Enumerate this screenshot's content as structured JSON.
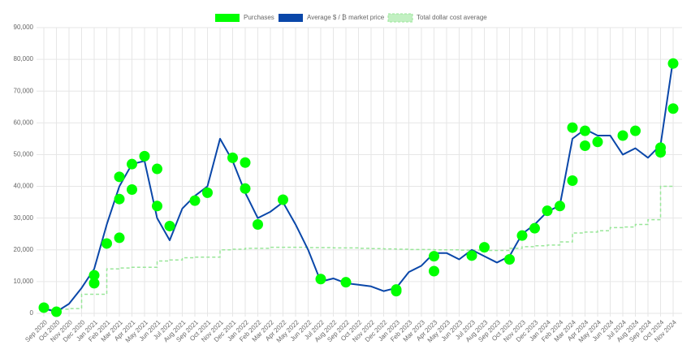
{
  "chart_data": {
    "type": "line",
    "categories": [
      "Sep 2020",
      "Oct 2020",
      "Nov 2020",
      "Dec 2020",
      "Jan 2021",
      "Feb 2021",
      "Mar 2021",
      "Apr 2021",
      "May 2021",
      "Jun 2021",
      "Jul 2021",
      "Aug 2021",
      "Sep 2021",
      "Oct 2021",
      "Nov 2021",
      "Dec 2021",
      "Jan 2022",
      "Feb 2022",
      "Mar 2022",
      "Apr 2022",
      "May 2022",
      "Jun 2022",
      "Jul 2022",
      "Aug 2022",
      "Sep 2022",
      "Oct 2022",
      "Nov 2022",
      "Dec 2022",
      "Jan 2023",
      "Feb 2023",
      "Mar 2023",
      "Apr 2023",
      "May 2023",
      "Jun 2023",
      "Jul 2023",
      "Aug 2023",
      "Sep 2023",
      "Oct 2023",
      "Nov 2023",
      "Dec 2023",
      "Jan 2024",
      "Feb 2024",
      "Mar 2024",
      "Apr 2024",
      "May 2024",
      "Jun 2024",
      "Jul 2024",
      "Aug 2024",
      "Sep 2024",
      "Oct 2024",
      "Nov 2024"
    ],
    "series": [
      {
        "name": "Purchases",
        "type": "scatter",
        "color": "#00ff00",
        "x": [
          "Sep 2020",
          "Oct 2020",
          "Jan 2021",
          "Jan 2021",
          "Feb 2021",
          "Mar 2021",
          "Mar 2021",
          "Mar 2021",
          "Apr 2021",
          "Apr 2021",
          "May 2021",
          "Jun 2021",
          "Jun 2021",
          "Jul 2021",
          "Sep 2021",
          "Oct 2021",
          "Dec 2021",
          "Jan 2022",
          "Jan 2022",
          "Feb 2022",
          "Apr 2022",
          "Jul 2022",
          "Sep 2022",
          "Jan 2023",
          "Jan 2023",
          "Apr 2023",
          "Apr 2023",
          "Jul 2023",
          "Aug 2023",
          "Oct 2023",
          "Nov 2023",
          "Dec 2023",
          "Jan 2024",
          "Feb 2024",
          "Mar 2024",
          "Mar 2024",
          "Apr 2024",
          "Apr 2024",
          "May 2024",
          "Jul 2024",
          "Aug 2024",
          "Oct 2024",
          "Oct 2024",
          "Nov 2024",
          "Nov 2024"
        ],
        "values": [
          1800,
          500,
          9500,
          12000,
          22000,
          23800,
          43000,
          36000,
          39000,
          47000,
          49500,
          45500,
          33800,
          27500,
          35500,
          38000,
          49000,
          47500,
          39300,
          28000,
          35800,
          10800,
          9800,
          7500,
          7000,
          13300,
          18000,
          18200,
          20800,
          17000,
          24500,
          26800,
          32300,
          33800,
          41800,
          58500,
          52800,
          57500,
          54000,
          56000,
          57500,
          50700,
          52200,
          64500,
          78700
        ]
      },
      {
        "name": "Average $ / ₿ market price",
        "type": "line",
        "color": "#0a47a9",
        "values": [
          1500,
          500,
          3000,
          8000,
          14000,
          28000,
          40000,
          47000,
          48000,
          30000,
          23000,
          33000,
          37000,
          40000,
          55000,
          48000,
          38000,
          30000,
          32000,
          35000,
          28000,
          20000,
          10000,
          11000,
          9500,
          9000,
          8500,
          7000,
          8000,
          13000,
          15000,
          19000,
          19000,
          17000,
          20000,
          18000,
          16000,
          18000,
          25000,
          28000,
          32000,
          34000,
          55000,
          58000,
          56000,
          56000,
          50000,
          52000,
          49000,
          53000,
          80000
        ]
      },
      {
        "name": "Total dollar cost average",
        "type": "step",
        "color": "#99e699",
        "values": [
          1500,
          1200,
          1300,
          1500,
          6000,
          6000,
          14000,
          14300,
          14500,
          14500,
          16500,
          16800,
          17500,
          17700,
          17700,
          20000,
          20200,
          20500,
          20500,
          20800,
          20800,
          20800,
          20700,
          20700,
          20600,
          20600,
          20500,
          20400,
          20300,
          20200,
          20100,
          20100,
          20000,
          20000,
          19900,
          19900,
          19800,
          19800,
          20500,
          21000,
          21300,
          21500,
          22500,
          25300,
          25600,
          26000,
          27000,
          27200,
          28000,
          29500,
          40000
        ]
      }
    ],
    "ylim": [
      0,
      90000
    ],
    "yticks": [
      0,
      {
        "value": 10000,
        "label": "10,000"
      },
      {
        "value": 20000,
        "label": "20,000"
      },
      {
        "value": 30000,
        "label": "30,000"
      },
      {
        "value": 40000,
        "label": "40,000"
      },
      {
        "value": 50000,
        "label": "50,000"
      },
      {
        "value": 60000,
        "label": "60,000"
      },
      {
        "value": 70000,
        "label": "70,000"
      },
      {
        "value": 80000,
        "label": "80,000"
      },
      {
        "value": 90000,
        "label": "90,000"
      }
    ],
    "grid": true,
    "legend": "top"
  }
}
